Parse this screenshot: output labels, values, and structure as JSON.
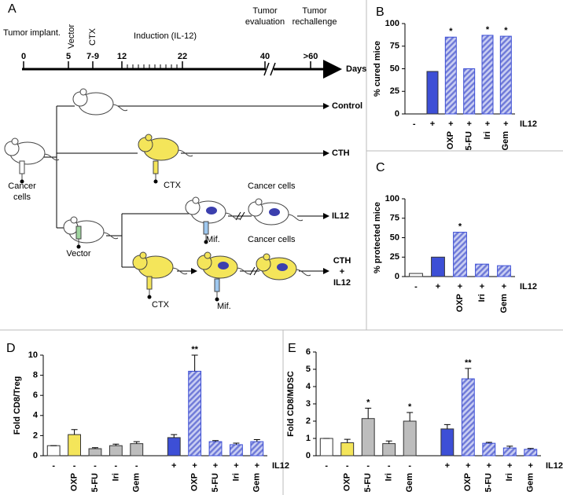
{
  "diagram": {
    "label": "A",
    "tumor_implant": "Tumor implant.",
    "vector_event": "Vector",
    "ctx_event": "CTX",
    "induction": "Induction (IL-12)",
    "tumor_evaluation": [
      "Tumor",
      "evaluation"
    ],
    "tumor_rechallenge": [
      "Tumor",
      "rechallenge"
    ],
    "timeline_ticks": [
      "0",
      "5",
      "7-9",
      "12",
      "22",
      "40",
      ">60"
    ],
    "days": "Days",
    "cancer_cells_start": [
      "Cancer",
      "cells"
    ],
    "vector": "Vector",
    "ctx_1": "CTX",
    "ctx_2": "CTX",
    "mif_1": "Mif.",
    "mif_2": "Mif.",
    "cancer_cells_1": "Cancer cells",
    "cancer_cells_2": "Cancer cells",
    "arm_control": "Control",
    "arm_cth": "CTH",
    "arm_il12": "IL12",
    "arm_combo": [
      "CTH",
      "+",
      "IL12"
    ]
  },
  "chart_data": [
    {
      "type": "bar",
      "panel_label": "B",
      "ylabel": "% cured mice",
      "ylim": [
        0,
        100
      ],
      "yticks": [
        0,
        25,
        50,
        75,
        100
      ],
      "categories": [
        null,
        null,
        "OXP",
        "5-FU",
        "Iri",
        "Gem"
      ],
      "il12": [
        "-",
        "+",
        "+",
        "+",
        "+",
        "+"
      ],
      "il12_label": "IL12",
      "values": [
        0,
        47,
        85,
        50,
        87,
        86
      ],
      "colors": [
        "#ffffff",
        "#3d4fd6",
        "#3d4fd6",
        "#3d4fd6",
        "#3d4fd6",
        "#3d4fd6"
      ],
      "hatched": [
        false,
        false,
        true,
        true,
        true,
        true
      ],
      "annotations": [
        {
          "index": 2,
          "text": "*"
        },
        {
          "index": 4,
          "text": "*"
        },
        {
          "index": 5,
          "text": "*"
        }
      ]
    },
    {
      "type": "bar",
      "panel_label": "C",
      "ylabel": "% protected mice",
      "ylim": [
        0,
        100
      ],
      "yticks": [
        0,
        25,
        50,
        75,
        100
      ],
      "categories": [
        null,
        null,
        "OXP",
        "Iri",
        "Gem"
      ],
      "il12": [
        "-",
        "+",
        "+",
        "+",
        "+"
      ],
      "il12_label": "IL12",
      "values": [
        4,
        25,
        57,
        16,
        14
      ],
      "colors": [
        "#ffffff",
        "#3d4fd6",
        "#3d4fd6",
        "#3d4fd6",
        "#3d4fd6"
      ],
      "hatched": [
        false,
        false,
        true,
        true,
        true
      ],
      "annotations": [
        {
          "index": 2,
          "text": "*"
        }
      ]
    },
    {
      "type": "bar",
      "panel_label": "D",
      "ylabel": "Fold CD8/Treg",
      "ylim": [
        0,
        10
      ],
      "yticks": [
        0,
        2,
        4,
        6,
        8,
        10
      ],
      "categories": [
        null,
        "OXP",
        "5-FU",
        "Iri",
        "Gem",
        null,
        "OXP",
        "5-FU",
        "Iri",
        "Gem"
      ],
      "il12": [
        "-",
        "-",
        "-",
        "-",
        "-",
        "+",
        "+",
        "+",
        "+",
        "+"
      ],
      "il12_label": "IL12",
      "values": [
        1,
        2.1,
        0.7,
        1.0,
        1.2,
        1.8,
        8.4,
        1.4,
        1.1,
        1.4
      ],
      "errors": [
        0,
        0.5,
        0.1,
        0.15,
        0.2,
        0.3,
        1.6,
        0.1,
        0.15,
        0.2
      ],
      "colors": [
        "#ffffff",
        "#f4e55a",
        "#bdbdbd",
        "#bdbdbd",
        "#bdbdbd",
        "#3d4fd6",
        "#3d4fd6",
        "#3d4fd6",
        "#3d4fd6",
        "#3d4fd6"
      ],
      "hatched": [
        false,
        false,
        false,
        false,
        false,
        false,
        true,
        true,
        true,
        true
      ],
      "annotations": [
        {
          "index": 6,
          "text": "**"
        }
      ]
    },
    {
      "type": "bar",
      "panel_label": "E",
      "ylabel": "Fold CD8/MDSC",
      "ylim": [
        0,
        6
      ],
      "yticks": [
        0,
        1,
        2,
        3,
        4,
        5,
        6
      ],
      "categories": [
        null,
        "OXP",
        "5-FU",
        "Iri",
        "Gem",
        null,
        "OXP",
        "5-FU",
        "Iri",
        "Gem"
      ],
      "il12": [
        "-",
        "-",
        "-",
        "-",
        "-",
        "+",
        "+",
        "+",
        "+",
        "+"
      ],
      "il12_label": "IL12",
      "values": [
        1.0,
        0.75,
        2.15,
        0.7,
        2.0,
        1.55,
        4.45,
        0.72,
        0.45,
        0.37
      ],
      "errors": [
        0,
        0.2,
        0.6,
        0.15,
        0.5,
        0.25,
        0.6,
        0.05,
        0.1,
        0.05
      ],
      "colors": [
        "#ffffff",
        "#f4e55a",
        "#bdbdbd",
        "#bdbdbd",
        "#bdbdbd",
        "#3d4fd6",
        "#3d4fd6",
        "#3d4fd6",
        "#3d4fd6",
        "#3d4fd6"
      ],
      "hatched": [
        false,
        false,
        false,
        false,
        false,
        false,
        true,
        true,
        true,
        true
      ],
      "annotations": [
        {
          "index": 2,
          "text": "*"
        },
        {
          "index": 4,
          "text": "*"
        },
        {
          "index": 6,
          "text": "**"
        }
      ]
    }
  ]
}
